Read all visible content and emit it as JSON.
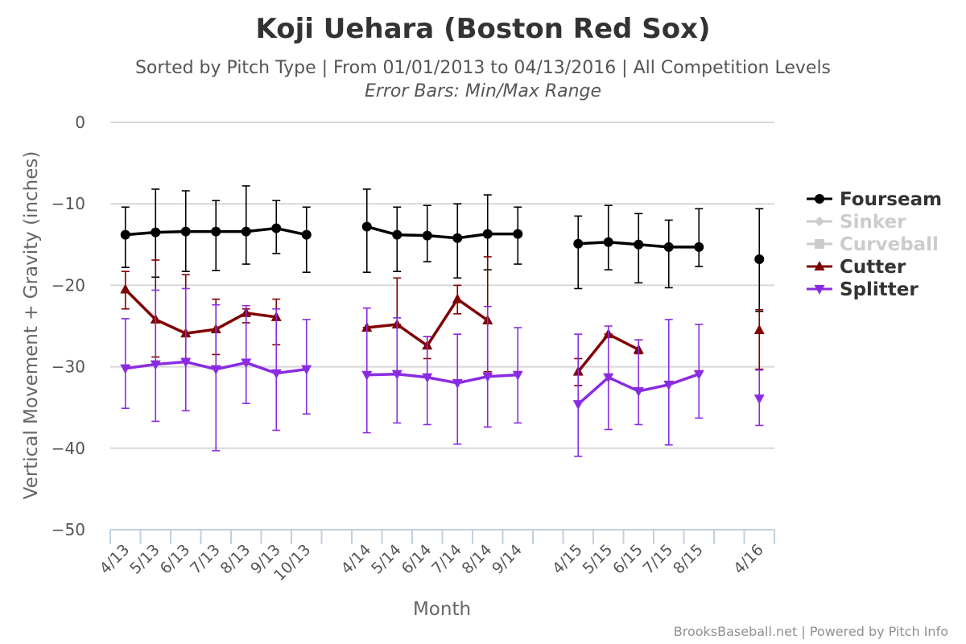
{
  "chart_data": {
    "type": "line",
    "title": "Koji Uehara (Boston Red Sox)",
    "subtitle": "Sorted by Pitch Type | From 01/01/2013 to 04/13/2016 | All Competition Levels",
    "error_note": "Error Bars: Min/Max Range",
    "xlabel": "Month",
    "ylabel": "Vertical Movement + Gravity (inches)",
    "ylim": [
      -50,
      0
    ],
    "yticks": [
      0,
      -10,
      -20,
      -30,
      -40,
      -50
    ],
    "grid": true,
    "legend_position": "right",
    "credit": "BrooksBaseball.net | Powered by Pitch Info",
    "categories": [
      "4/13",
      "5/13",
      "6/13",
      "7/13",
      "8/13",
      "9/13",
      "10/13",
      "",
      "4/14",
      "5/14",
      "6/14",
      "7/14",
      "8/14",
      "9/14",
      "",
      "4/15",
      "5/15",
      "6/15",
      "7/15",
      "8/15",
      "",
      "4/16"
    ],
    "series": [
      {
        "name": "Fourseam",
        "color": "#000000",
        "marker": "circle",
        "active": true,
        "segments": [
          {
            "points": [
              {
                "x": "4/13",
                "y": -13.8,
                "min": -17.8,
                "max": -10.4
              },
              {
                "x": "5/13",
                "y": -13.5,
                "min": -19.0,
                "max": -8.2
              },
              {
                "x": "6/13",
                "y": -13.4,
                "min": -18.3,
                "max": -8.4
              },
              {
                "x": "7/13",
                "y": -13.4,
                "min": -18.2,
                "max": -9.6
              },
              {
                "x": "8/13",
                "y": -13.4,
                "min": -17.4,
                "max": -7.8
              },
              {
                "x": "9/13",
                "y": -13.0,
                "min": -16.1,
                "max": -9.6
              },
              {
                "x": "10/13",
                "y": -13.8,
                "min": -18.4,
                "max": -10.4
              }
            ]
          },
          {
            "points": [
              {
                "x": "4/14",
                "y": -12.8,
                "min": -18.4,
                "max": -8.2
              },
              {
                "x": "5/14",
                "y": -13.8,
                "min": -18.3,
                "max": -10.4
              },
              {
                "x": "6/14",
                "y": -13.9,
                "min": -17.1,
                "max": -10.2
              },
              {
                "x": "7/14",
                "y": -14.2,
                "min": -19.1,
                "max": -10.0
              },
              {
                "x": "8/14",
                "y": -13.7,
                "min": -18.1,
                "max": -8.9
              },
              {
                "x": "9/14",
                "y": -13.7,
                "min": -17.4,
                "max": -10.4
              }
            ]
          },
          {
            "points": [
              {
                "x": "4/15",
                "y": -14.9,
                "min": -20.4,
                "max": -11.5
              },
              {
                "x": "5/15",
                "y": -14.7,
                "min": -18.1,
                "max": -10.2
              },
              {
                "x": "6/15",
                "y": -15.0,
                "min": -19.7,
                "max": -11.2
              },
              {
                "x": "7/15",
                "y": -15.3,
                "min": -20.3,
                "max": -12.0
              },
              {
                "x": "8/15",
                "y": -15.3,
                "min": -17.7,
                "max": -10.6
              }
            ]
          },
          {
            "points": [
              {
                "x": "4/16",
                "y": -16.8,
                "min": -23.2,
                "max": -10.6
              }
            ]
          }
        ]
      },
      {
        "name": "Sinker",
        "color": "#cccccc",
        "marker": "diamond",
        "active": false,
        "segments": []
      },
      {
        "name": "Curveball",
        "color": "#cccccc",
        "marker": "square",
        "active": false,
        "segments": []
      },
      {
        "name": "Cutter",
        "color": "#800000",
        "marker": "triangle",
        "active": true,
        "segments": [
          {
            "points": [
              {
                "x": "4/13",
                "y": -20.5,
                "min": -22.9,
                "max": -18.3
              },
              {
                "x": "5/13",
                "y": -24.2,
                "min": -28.8,
                "max": -16.9
              },
              {
                "x": "6/13",
                "y": -25.9,
                "min": -29.2,
                "max": -18.7
              },
              {
                "x": "7/13",
                "y": -25.4,
                "min": -28.5,
                "max": -21.7
              },
              {
                "x": "8/13",
                "y": -23.4,
                "min": -24.6,
                "max": -22.9
              },
              {
                "x": "9/13",
                "y": -23.9,
                "min": -27.3,
                "max": -21.7
              }
            ]
          },
          {
            "points": [
              {
                "x": "4/14",
                "y": -25.2,
                "min": -25.2,
                "max": -25.2
              },
              {
                "x": "5/14",
                "y": -24.8,
                "min": -24.8,
                "max": -19.1
              },
              {
                "x": "6/14",
                "y": -27.4,
                "min": -29.0,
                "max": -26.3
              },
              {
                "x": "7/14",
                "y": -21.7,
                "min": -23.5,
                "max": -20.0
              },
              {
                "x": "8/14",
                "y": -24.3,
                "min": -30.6,
                "max": -16.5
              }
            ]
          },
          {
            "points": [
              {
                "x": "4/15",
                "y": -30.6,
                "min": -32.3,
                "max": -29.0
              },
              {
                "x": "5/15",
                "y": -26.0,
                "min": -26.0,
                "max": -26.0
              },
              {
                "x": "6/15",
                "y": -27.9,
                "min": -28.4,
                "max": -26.7
              }
            ]
          },
          {
            "points": [
              {
                "x": "4/16",
                "y": -25.5,
                "min": -30.3,
                "max": -23.0
              }
            ]
          }
        ]
      },
      {
        "name": "Splitter",
        "color": "#8a2be2",
        "marker": "triangle-down",
        "active": true,
        "segments": [
          {
            "points": [
              {
                "x": "4/13",
                "y": -30.2,
                "min": -35.1,
                "max": -24.1
              },
              {
                "x": "5/13",
                "y": -29.7,
                "min": -36.7,
                "max": -20.6
              },
              {
                "x": "6/13",
                "y": -29.4,
                "min": -35.4,
                "max": -20.4
              },
              {
                "x": "7/13",
                "y": -30.3,
                "min": -40.3,
                "max": -22.4
              },
              {
                "x": "8/13",
                "y": -29.5,
                "min": -34.5,
                "max": -22.5
              },
              {
                "x": "9/13",
                "y": -30.8,
                "min": -37.8,
                "max": -22.9
              },
              {
                "x": "10/13",
                "y": -30.3,
                "min": -35.8,
                "max": -24.2
              }
            ]
          },
          {
            "points": [
              {
                "x": "4/14",
                "y": -31.0,
                "min": -38.1,
                "max": -22.8
              },
              {
                "x": "5/14",
                "y": -30.9,
                "min": -36.9,
                "max": -24.0
              },
              {
                "x": "6/14",
                "y": -31.3,
                "min": -37.1,
                "max": -26.3
              },
              {
                "x": "7/14",
                "y": -32.0,
                "min": -39.5,
                "max": -26.0
              },
              {
                "x": "8/14",
                "y": -31.2,
                "min": -37.4,
                "max": -22.6
              },
              {
                "x": "9/14",
                "y": -31.0,
                "min": -36.9,
                "max": -25.2
              }
            ]
          },
          {
            "points": [
              {
                "x": "4/15",
                "y": -34.6,
                "min": -41.0,
                "max": -26.0
              },
              {
                "x": "5/15",
                "y": -31.3,
                "min": -37.7,
                "max": -25.0
              },
              {
                "x": "6/15",
                "y": -33.0,
                "min": -37.1,
                "max": -26.7
              },
              {
                "x": "7/15",
                "y": -32.2,
                "min": -39.6,
                "max": -24.2
              },
              {
                "x": "8/15",
                "y": -30.9,
                "min": -36.3,
                "max": -24.8
              }
            ]
          },
          {
            "points": [
              {
                "x": "4/16",
                "y": -33.9,
                "min": -37.2,
                "max": -30.4
              }
            ]
          }
        ]
      }
    ]
  }
}
